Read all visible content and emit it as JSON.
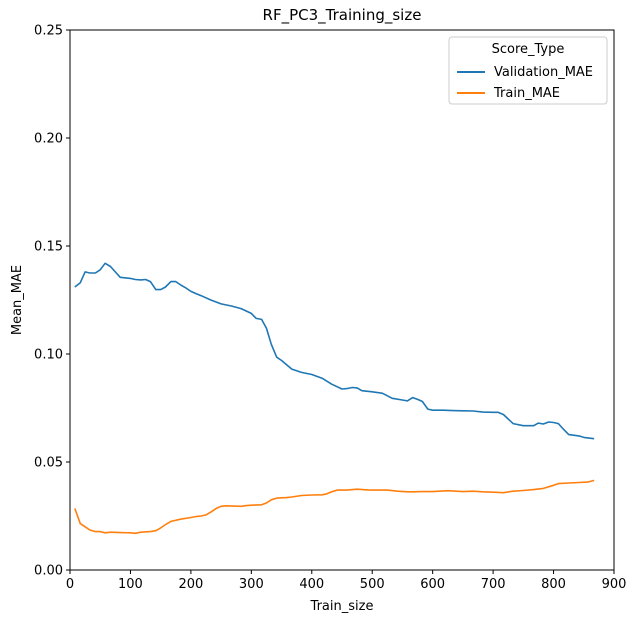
{
  "chart_data": {
    "type": "line",
    "title": "RF_PC3_Training_size",
    "xlabel": "Train_size",
    "ylabel": "Mean_MAE",
    "xlim": [
      0,
      900
    ],
    "ylim": [
      0,
      0.25
    ],
    "xticks": [
      "0",
      "100",
      "200",
      "300",
      "400",
      "500",
      "600",
      "700",
      "800",
      "900"
    ],
    "yticks": [
      "0.00",
      "0.05",
      "0.10",
      "0.15",
      "0.20",
      "0.25"
    ],
    "grid": false,
    "legend": {
      "title": "Score_Type",
      "placement": "top-right"
    },
    "series": [
      {
        "name": "Validation_MAE",
        "color": "#1f77b4",
        "points": [
          [
            8,
            0.131
          ],
          [
            17,
            0.133
          ],
          [
            25,
            0.138
          ],
          [
            33,
            0.1375
          ],
          [
            42,
            0.1375
          ],
          [
            50,
            0.139
          ],
          [
            58,
            0.142
          ],
          [
            67,
            0.1405
          ],
          [
            75,
            0.138
          ],
          [
            83,
            0.1355
          ],
          [
            100,
            0.135
          ],
          [
            108,
            0.1345
          ],
          [
            117,
            0.1343
          ],
          [
            125,
            0.1345
          ],
          [
            133,
            0.1335
          ],
          [
            142,
            0.1298
          ],
          [
            150,
            0.1298
          ],
          [
            158,
            0.131
          ],
          [
            167,
            0.1335
          ],
          [
            175,
            0.1335
          ],
          [
            183,
            0.132
          ],
          [
            192,
            0.1305
          ],
          [
            200,
            0.129
          ],
          [
            208,
            0.128
          ],
          [
            217,
            0.127
          ],
          [
            233,
            0.125
          ],
          [
            250,
            0.1232
          ],
          [
            267,
            0.1222
          ],
          [
            283,
            0.121
          ],
          [
            300,
            0.1188
          ],
          [
            308,
            0.1165
          ],
          [
            317,
            0.116
          ],
          [
            325,
            0.112
          ],
          [
            333,
            0.1045
          ],
          [
            342,
            0.0985
          ],
          [
            350,
            0.097
          ],
          [
            367,
            0.093
          ],
          [
            383,
            0.0915
          ],
          [
            400,
            0.0905
          ],
          [
            417,
            0.0888
          ],
          [
            433,
            0.086
          ],
          [
            450,
            0.0838
          ],
          [
            458,
            0.084
          ],
          [
            467,
            0.0845
          ],
          [
            475,
            0.0843
          ],
          [
            483,
            0.083
          ],
          [
            500,
            0.0825
          ],
          [
            517,
            0.0818
          ],
          [
            533,
            0.0795
          ],
          [
            550,
            0.0787
          ],
          [
            558,
            0.0783
          ],
          [
            567,
            0.0798
          ],
          [
            575,
            0.079
          ],
          [
            583,
            0.078
          ],
          [
            592,
            0.0745
          ],
          [
            600,
            0.074
          ],
          [
            617,
            0.074
          ],
          [
            633,
            0.0738
          ],
          [
            650,
            0.0737
          ],
          [
            667,
            0.0736
          ],
          [
            683,
            0.0731
          ],
          [
            700,
            0.073
          ],
          [
            708,
            0.073
          ],
          [
            717,
            0.072
          ],
          [
            733,
            0.0678
          ],
          [
            750,
            0.0668
          ],
          [
            767,
            0.0668
          ],
          [
            775,
            0.068
          ],
          [
            783,
            0.0676
          ],
          [
            792,
            0.0685
          ],
          [
            800,
            0.0683
          ],
          [
            808,
            0.0678
          ],
          [
            817,
            0.065
          ],
          [
            825,
            0.0627
          ],
          [
            842,
            0.0621
          ],
          [
            850,
            0.0614
          ],
          [
            867,
            0.0608
          ]
        ]
      },
      {
        "name": "Train_MAE",
        "color": "#ff7f0e",
        "points": [
          [
            8,
            0.0285
          ],
          [
            17,
            0.0215
          ],
          [
            25,
            0.02
          ],
          [
            33,
            0.0185
          ],
          [
            42,
            0.0178
          ],
          [
            50,
            0.0178
          ],
          [
            58,
            0.0172
          ],
          [
            67,
            0.0175
          ],
          [
            83,
            0.0173
          ],
          [
            100,
            0.0172
          ],
          [
            108,
            0.017
          ],
          [
            117,
            0.0175
          ],
          [
            133,
            0.0178
          ],
          [
            142,
            0.0182
          ],
          [
            150,
            0.0195
          ],
          [
            158,
            0.021
          ],
          [
            167,
            0.0225
          ],
          [
            183,
            0.0235
          ],
          [
            200,
            0.0243
          ],
          [
            208,
            0.0247
          ],
          [
            217,
            0.025
          ],
          [
            225,
            0.0255
          ],
          [
            233,
            0.0268
          ],
          [
            242,
            0.0285
          ],
          [
            250,
            0.0295
          ],
          [
            258,
            0.0297
          ],
          [
            283,
            0.0295
          ],
          [
            292,
            0.0298
          ],
          [
            300,
            0.03
          ],
          [
            317,
            0.0302
          ],
          [
            325,
            0.031
          ],
          [
            333,
            0.0325
          ],
          [
            342,
            0.0333
          ],
          [
            358,
            0.0335
          ],
          [
            367,
            0.0338
          ],
          [
            383,
            0.0345
          ],
          [
            400,
            0.0347
          ],
          [
            417,
            0.0348
          ],
          [
            425,
            0.0353
          ],
          [
            433,
            0.0362
          ],
          [
            442,
            0.037
          ],
          [
            458,
            0.037
          ],
          [
            475,
            0.0374
          ],
          [
            492,
            0.0371
          ],
          [
            500,
            0.037
          ],
          [
            525,
            0.037
          ],
          [
            542,
            0.0365
          ],
          [
            558,
            0.0362
          ],
          [
            567,
            0.0362
          ],
          [
            583,
            0.0363
          ],
          [
            600,
            0.0363
          ],
          [
            625,
            0.0367
          ],
          [
            650,
            0.0363
          ],
          [
            667,
            0.0365
          ],
          [
            683,
            0.0362
          ],
          [
            700,
            0.036
          ],
          [
            717,
            0.0358
          ],
          [
            733,
            0.0365
          ],
          [
            750,
            0.0368
          ],
          [
            767,
            0.0372
          ],
          [
            783,
            0.0378
          ],
          [
            800,
            0.0392
          ],
          [
            808,
            0.04
          ],
          [
            825,
            0.0403
          ],
          [
            842,
            0.0405
          ],
          [
            858,
            0.0408
          ],
          [
            867,
            0.0415
          ]
        ]
      }
    ]
  }
}
